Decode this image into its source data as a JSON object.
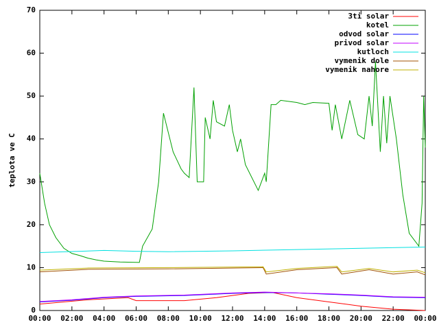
{
  "chart_data": {
    "type": "line",
    "y_label": "teplota ve C",
    "grid": false,
    "legend": "top-right",
    "xlim": [
      0,
      24
    ],
    "ylim": [
      0,
      70
    ],
    "xticks": [
      {
        "value": 0,
        "label": "00:00"
      },
      {
        "value": 2,
        "label": "02:00"
      },
      {
        "value": 4,
        "label": "04:00"
      },
      {
        "value": 6,
        "label": "06:00"
      },
      {
        "value": 8,
        "label": "08:00"
      },
      {
        "value": 10,
        "label": "10:00"
      },
      {
        "value": 12,
        "label": "12:00"
      },
      {
        "value": 14,
        "label": "14:00"
      },
      {
        "value": 16,
        "label": "16:00"
      },
      {
        "value": 18,
        "label": "18:00"
      },
      {
        "value": 20,
        "label": "20:00"
      },
      {
        "value": 22,
        "label": "22:00"
      },
      {
        "value": 24,
        "label": "00:00"
      }
    ],
    "yticks": [
      0,
      10,
      20,
      30,
      40,
      50,
      60,
      70
    ],
    "series": [
      {
        "name": "3ti solar",
        "color": "#ff0000",
        "x": [
          0,
          3,
          5.5,
          6,
          9,
          11,
          13,
          14.5,
          16,
          18,
          20,
          22,
          24
        ],
        "values": [
          1.5,
          2.5,
          3,
          2.3,
          2.3,
          3,
          4,
          4.2,
          3,
          2,
          1,
          0.3,
          0
        ]
      },
      {
        "name": "kotel",
        "color": "#00a000",
        "x": [
          0,
          0.3,
          0.6,
          1,
          1.5,
          2,
          2.5,
          3,
          3.5,
          4,
          5,
          6.2,
          6.4,
          7,
          7.4,
          7.7,
          8.3,
          8.8,
          9,
          9.3,
          9.6,
          9.8,
          10.2,
          10.3,
          10.6,
          10.8,
          11,
          11.5,
          11.8,
          12,
          12.3,
          12.5,
          12.8,
          13.6,
          14,
          14.1,
          14.4,
          14.7,
          15,
          16,
          16.5,
          17,
          18,
          18.2,
          18.4,
          18.8,
          19.3,
          19.8,
          20.2,
          20.5,
          20.7,
          20.9,
          21.2,
          21.4,
          21.6,
          21.8,
          22.2,
          22.6,
          23,
          23.6,
          23.8,
          23.9,
          24
        ],
        "values": [
          32,
          25,
          20,
          17,
          14.5,
          13.3,
          12.8,
          12.2,
          11.8,
          11.5,
          11.3,
          11.2,
          15,
          19,
          30,
          46,
          37,
          33,
          32,
          31,
          52,
          30,
          30,
          45,
          40,
          49,
          44,
          43,
          48,
          42,
          37,
          40,
          34,
          28,
          32,
          30,
          48,
          48,
          49,
          48.5,
          48,
          48.5,
          48.3,
          42,
          48,
          40,
          49,
          41,
          40,
          50,
          43,
          58,
          37,
          50,
          39,
          50,
          40,
          27,
          18,
          15,
          25,
          50,
          38
        ]
      },
      {
        "name": "odvod solar",
        "color": "#0000ff",
        "x": [
          0,
          2,
          4,
          6,
          9,
          12,
          14,
          16,
          18,
          20,
          22,
          24
        ],
        "values": [
          2,
          2.4,
          3,
          3.3,
          3.5,
          4,
          4.2,
          4.1,
          3.8,
          3.5,
          3.1,
          3
        ]
      },
      {
        "name": "privod solar",
        "color": "#c000ff",
        "x": [
          0,
          2,
          4,
          6,
          9,
          12,
          14,
          16,
          18,
          20,
          22,
          24
        ],
        "values": [
          2.1,
          2.5,
          3.1,
          3.4,
          3.6,
          4.1,
          4.3,
          4.1,
          3.9,
          3.6,
          3.2,
          3.1
        ]
      },
      {
        "name": "kutloch",
        "color": "#00e0e0",
        "x": [
          0,
          4,
          6,
          8,
          12,
          16,
          20,
          24
        ],
        "values": [
          13.5,
          14,
          13.8,
          13.7,
          13.9,
          14.2,
          14.5,
          14.8
        ]
      },
      {
        "name": "vymenik dole",
        "color": "#a05000",
        "x": [
          0,
          3,
          8,
          13.9,
          14.1,
          16,
          18.5,
          18.8,
          20.5,
          22,
          23.5,
          24
        ],
        "values": [
          9,
          9.6,
          9.7,
          10,
          8.5,
          9.5,
          10,
          8.5,
          9.5,
          8.5,
          9,
          8.3
        ]
      },
      {
        "name": "vymenik nahore",
        "color": "#c0b000",
        "x": [
          0,
          3,
          8,
          13.9,
          14.1,
          16,
          18.5,
          18.8,
          20.5,
          22,
          23.5,
          24
        ],
        "values": [
          9.4,
          9.9,
          10,
          10.2,
          9,
          9.8,
          10.3,
          9,
          9.8,
          9,
          9.4,
          8.8
        ]
      }
    ]
  }
}
